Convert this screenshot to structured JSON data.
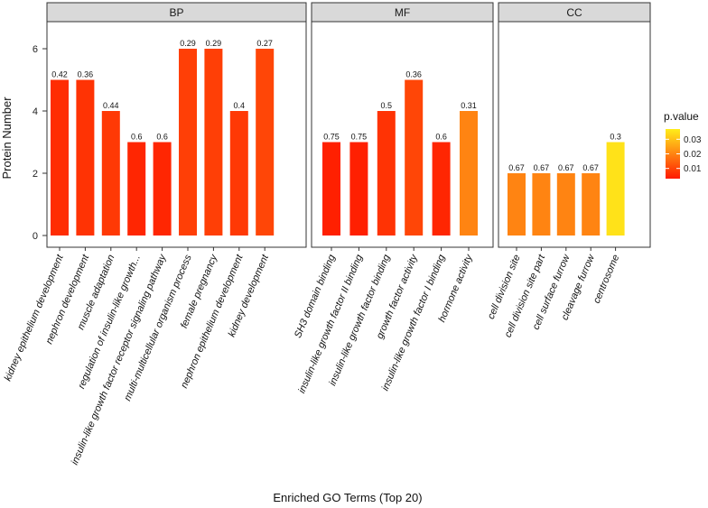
{
  "chart_data": {
    "type": "bar",
    "xlabel": "Enriched GO Terms (Top 20)",
    "ylabel": "Protein Number",
    "ylim": [
      0,
      7
    ],
    "yticks": [
      0,
      2,
      4,
      6
    ],
    "grid": false,
    "legend": {
      "title": "p.value",
      "placement": "right",
      "ticks": [
        0.01,
        0.02,
        0.03
      ],
      "tick_labels": [
        "0.01",
        "0.02",
        "0.03"
      ],
      "range": [
        0.003,
        0.037
      ],
      "colors": [
        "#ff1a00",
        "#ffee1a"
      ]
    },
    "facets": [
      {
        "name": "BP",
        "categories": [
          "kidney epithelium development",
          "nephron development",
          "muscle adaptation",
          "regulation of insulin-like growth...",
          "insulin-like growth factor receptor signaling pathway",
          "multi-multicellular organism process",
          "female pregnancy",
          "nephron epithelium development",
          "kidney development"
        ],
        "values": [
          5,
          5,
          4,
          3,
          3,
          6,
          6,
          4,
          6
        ],
        "labels": [
          "0.42",
          "0.36",
          "0.44",
          "0.6",
          "0.6",
          "0.29",
          "0.29",
          "0.4",
          "0.27"
        ],
        "p_values": [
          0.006,
          0.007,
          0.008,
          0.005,
          0.005,
          0.009,
          0.009,
          0.008,
          0.01
        ]
      },
      {
        "name": "MF",
        "categories": [
          "SH3 domain binding",
          "insulin-like growth factor II binding",
          "insulin-like growth factor binding",
          "growth factor activity",
          "insulin-like growth factor I binding",
          "hormone activity"
        ],
        "values": [
          3,
          3,
          4,
          5,
          3,
          4
        ],
        "labels": [
          "0.75",
          "0.75",
          "0.5",
          "0.36",
          "0.6",
          "0.31"
        ],
        "p_values": [
          0.004,
          0.004,
          0.007,
          0.01,
          0.005,
          0.02
        ]
      },
      {
        "name": "CC",
        "categories": [
          "cell division site",
          "cell division site part",
          "cell surface furrow",
          "cleavage furrow",
          "centrosome"
        ],
        "values": [
          2,
          2,
          2,
          2,
          3
        ],
        "labels": [
          "0.67",
          "0.67",
          "0.67",
          "0.67",
          "0.3"
        ],
        "p_values": [
          0.02,
          0.02,
          0.02,
          0.02,
          0.035
        ]
      }
    ]
  }
}
